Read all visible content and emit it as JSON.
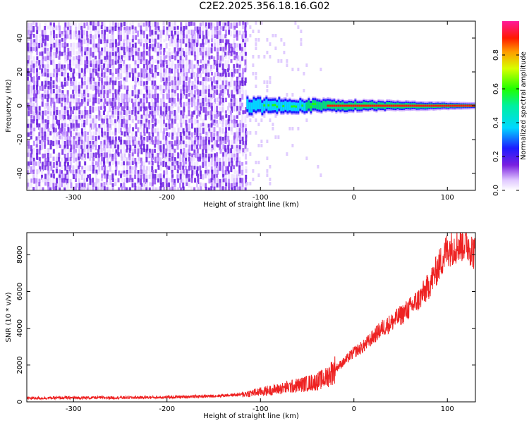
{
  "chart_data": [
    {
      "type": "heatmap",
      "name": "spectrogram",
      "xlabel": "Height of straight line (km)",
      "ylabel": "Frequency (Hz)",
      "xlim": [
        -350,
        130
      ],
      "ylim": [
        -50,
        50
      ],
      "x_ticks": [
        -300,
        -200,
        -100,
        0,
        100
      ],
      "y_ticks": [
        -40,
        -20,
        0,
        20,
        40
      ],
      "x_tick_labels": [
        "-300",
        "-200",
        "-100",
        "0",
        "100"
      ],
      "y_tick_labels": [
        "-40",
        "-20",
        "0",
        "20",
        "40"
      ],
      "colorbar": {
        "label": "Normalized spectral amplitude",
        "range": [
          0,
          1
        ],
        "ticks": [
          0.0,
          0.2,
          0.4,
          0.6,
          0.8
        ],
        "tick_labels": [
          "0.0",
          "0.2",
          "0.4",
          "0.6",
          "0.8"
        ]
      },
      "noise_region_end_km": -115,
      "signal_start_km": -115,
      "signal_center_hz": 0
    },
    {
      "type": "line",
      "name": "snr",
      "xlabel": "Height of straight line (km)",
      "ylabel": "SNR (10 * v/v)",
      "xlim": [
        -350,
        130
      ],
      "ylim": [
        0,
        9200
      ],
      "x_ticks": [
        -300,
        -200,
        -100,
        0,
        100
      ],
      "y_ticks": [
        0,
        2000,
        4000,
        6000,
        8000
      ],
      "x_tick_labels": [
        "-300",
        "-200",
        "-100",
        "0",
        "100"
      ],
      "y_tick_labels": [
        "0",
        "2000",
        "4000",
        "6000",
        "8000"
      ],
      "series": [
        {
          "name": "SNR",
          "color": "#ee2222",
          "x": [
            -350,
            -300,
            -250,
            -200,
            -150,
            -120,
            -100,
            -80,
            -60,
            -40,
            -30,
            -20,
            -10,
            0,
            10,
            20,
            30,
            40,
            50,
            60,
            70,
            80,
            90,
            100,
            110,
            120,
            130
          ],
          "y": [
            200,
            220,
            230,
            250,
            320,
            400,
            550,
            700,
            900,
            1100,
            1300,
            1800,
            2200,
            2700,
            3000,
            3500,
            4000,
            4300,
            4700,
            5100,
            5600,
            6300,
            7300,
            8300,
            8500,
            8700,
            8000
          ]
        }
      ]
    }
  ],
  "title": "C2E2.2025.356.18.16.G02"
}
